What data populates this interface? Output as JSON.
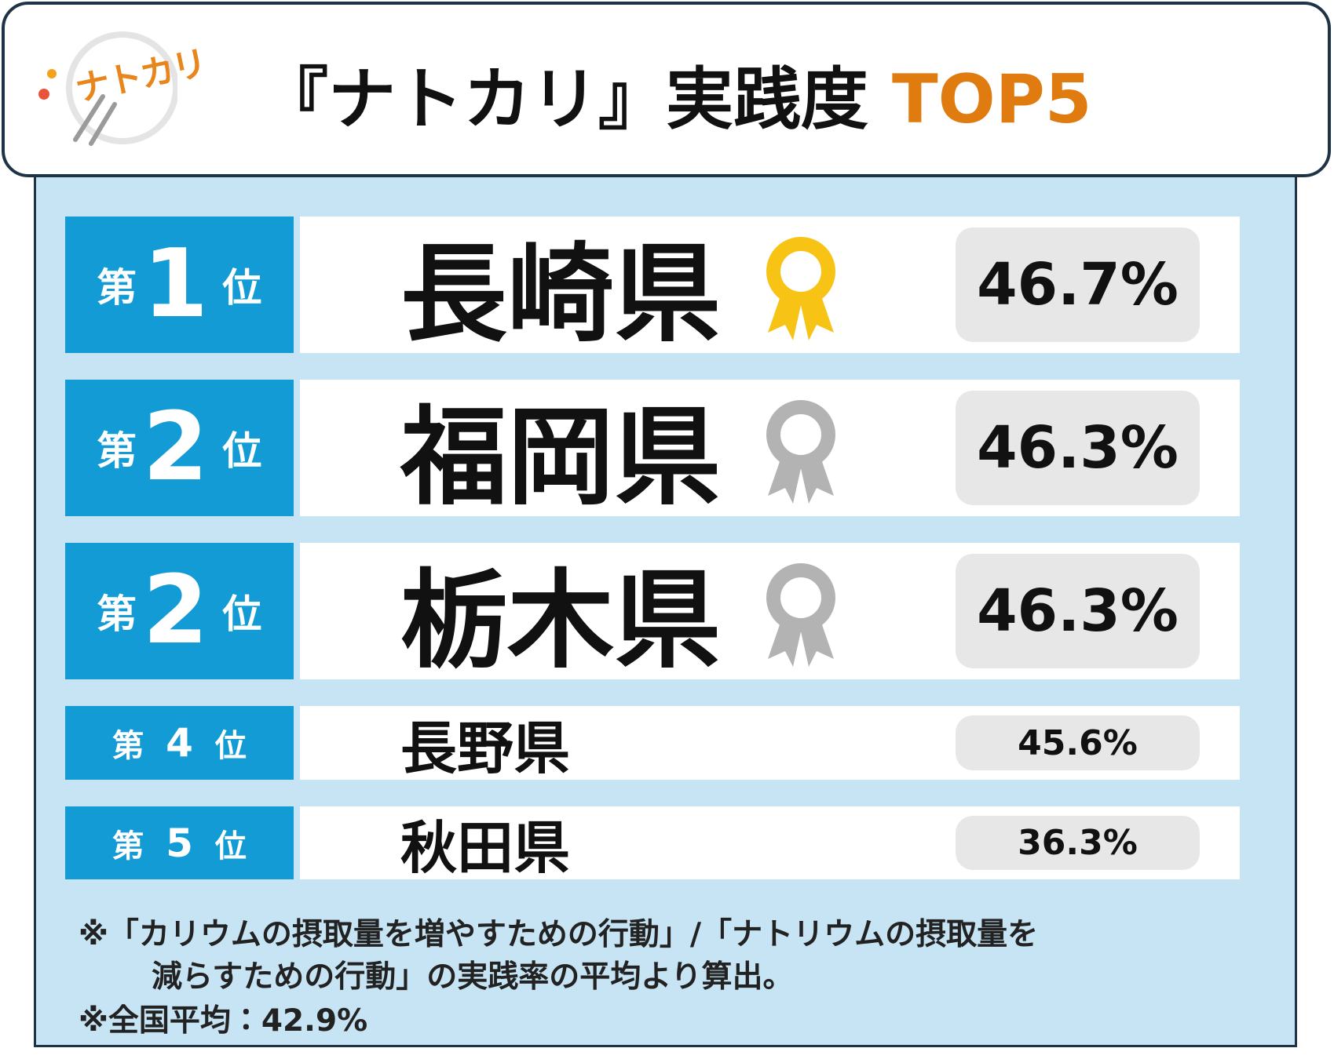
{
  "header": {
    "logo": "ナトカリ",
    "title": "『ナトカリ』実践度",
    "title_accent": "TOP5"
  },
  "ranking": [
    {
      "prefix": "第",
      "rank": "1",
      "suffix": "位",
      "prefecture": "長崎県",
      "rate": "46.7%"
    },
    {
      "prefix": "第",
      "rank": "2",
      "suffix": "位",
      "prefecture": "福岡県",
      "rate": "46.3%"
    },
    {
      "prefix": "第",
      "rank": "2",
      "suffix": "位",
      "prefecture": "栃木県",
      "rate": "46.3%"
    },
    {
      "prefix": "第",
      "rank": "4",
      "suffix": "位",
      "prefecture": "長野県",
      "rate": "45.6%"
    },
    {
      "prefix": "第",
      "rank": "5",
      "suffix": "位",
      "prefecture": "秋田県",
      "rate": "36.3%"
    }
  ],
  "notes": [
    "※「カリウムの摂取量を増やすための行動」/「ナトリウムの摂取量を",
    "減らすための行動」の実践率の平均より算出。",
    "※全国平均：42.9%"
  ]
}
